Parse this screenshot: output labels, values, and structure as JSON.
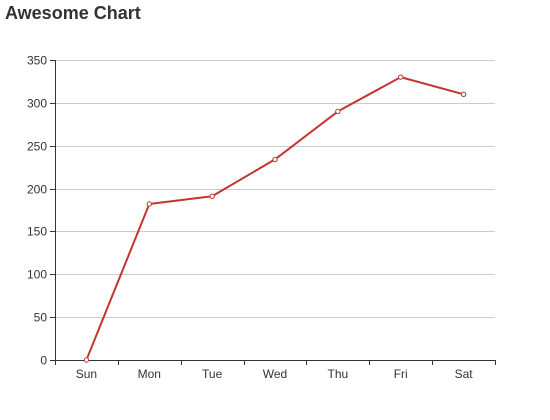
{
  "chart_data": {
    "type": "line",
    "title": "Awesome Chart",
    "xlabel": "",
    "ylabel": "",
    "categories": [
      "Sun",
      "Mon",
      "Tue",
      "Wed",
      "Thu",
      "Fri",
      "Sat"
    ],
    "series": [
      {
        "values": [
          0,
          182,
          191,
          234,
          290,
          330,
          310
        ],
        "color": "#c23531"
      }
    ],
    "ylim": [
      0,
      350
    ],
    "yticks": [
      0,
      50,
      100,
      150,
      200,
      250,
      300,
      350
    ],
    "grid": true,
    "legend": "none",
    "axis_color": "#333333",
    "grid_color": "#cccccc"
  }
}
